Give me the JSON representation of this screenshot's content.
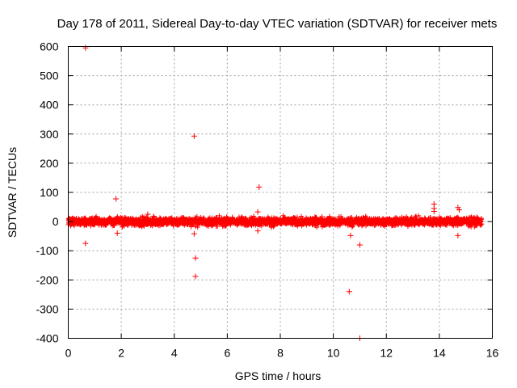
{
  "chart_data": {
    "type": "scatter",
    "title": "Day 178 of 2011, Sidereal Day-to-day VTEC variation (SDTVAR) for receiver mets",
    "xlabel": "GPS time / hours",
    "ylabel": "SDTVAR / TECUs",
    "xlim": [
      0,
      16
    ],
    "ylim": [
      -400,
      600
    ],
    "xticks": [
      0,
      2,
      4,
      6,
      8,
      10,
      12,
      14,
      16
    ],
    "yticks": [
      -400,
      -300,
      -200,
      -100,
      0,
      100,
      200,
      300,
      400,
      500,
      600
    ],
    "grid": true,
    "marker": "+",
    "color": "#ff0000",
    "band": {
      "x_start": 0.0,
      "x_end": 15.6,
      "y_center": 0,
      "half_width_typical": 12,
      "note": "dense noisy cluster around zero"
    },
    "outliers": [
      {
        "x": 0.65,
        "y": 595
      },
      {
        "x": 0.65,
        "y": -75
      },
      {
        "x": 1.8,
        "y": 78
      },
      {
        "x": 1.85,
        "y": -40
      },
      {
        "x": 3.0,
        "y": 25
      },
      {
        "x": 4.75,
        "y": 293
      },
      {
        "x": 4.75,
        "y": -42
      },
      {
        "x": 4.8,
        "y": -125
      },
      {
        "x": 4.8,
        "y": -188
      },
      {
        "x": 7.2,
        "y": 118
      },
      {
        "x": 7.15,
        "y": 33
      },
      {
        "x": 7.15,
        "y": -32
      },
      {
        "x": 10.6,
        "y": -240
      },
      {
        "x": 10.65,
        "y": -48
      },
      {
        "x": 11.0,
        "y": -80
      },
      {
        "x": 11.0,
        "y": -400
      },
      {
        "x": 13.8,
        "y": 60
      },
      {
        "x": 13.8,
        "y": 45
      },
      {
        "x": 13.8,
        "y": 35
      },
      {
        "x": 14.7,
        "y": 48
      },
      {
        "x": 14.75,
        "y": 40
      },
      {
        "x": 14.7,
        "y": -48
      }
    ]
  }
}
